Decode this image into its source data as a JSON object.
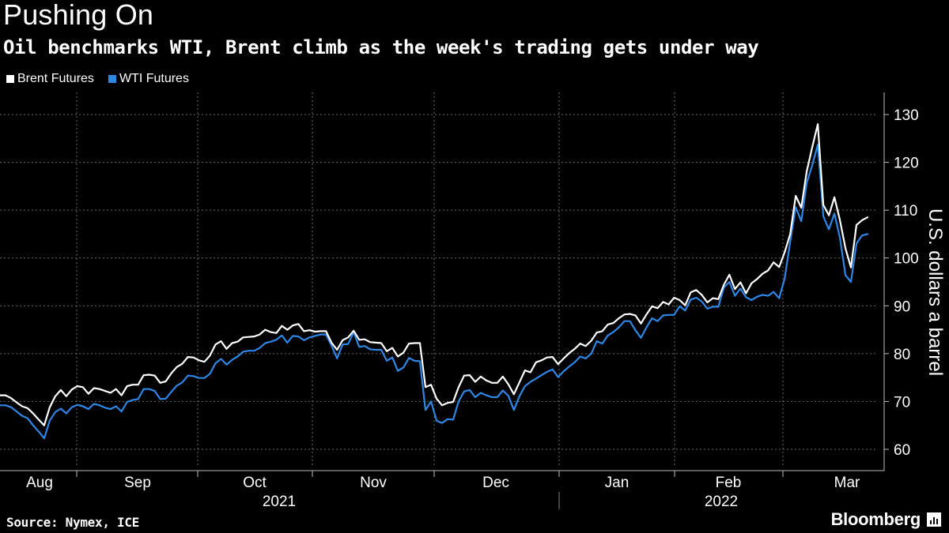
{
  "header": {
    "title": "Pushing On",
    "subtitle": "Oil benchmarks WTI, Brent climb as the week's trading gets under way"
  },
  "footer": {
    "source": "Source: Nymex, ICE",
    "brand": "Bloomberg"
  },
  "colors": {
    "background": "#000000",
    "brent": "#ffffff",
    "wti": "#2e86e6",
    "grid": "#6a6a6a"
  },
  "chart_data": {
    "type": "line",
    "title": "Pushing On",
    "subtitle": "Oil benchmarks WTI, Brent climb as the week's trading gets under way",
    "ylabel": "U.S. dollars a barrel",
    "ylim": [
      55,
      133
    ],
    "yticks": [
      60,
      70,
      80,
      90,
      100,
      110,
      120,
      130
    ],
    "month_ticks": [
      "Aug",
      "Sep",
      "Oct",
      "Nov",
      "Dec",
      "Jan",
      "Feb",
      "Mar"
    ],
    "year_labels": [
      "2021",
      "2022"
    ],
    "x_start": "2021-07-30",
    "legend_position": "top-left",
    "grid": true,
    "series": [
      {
        "name": "Brent Futures",
        "color": "#ffffff",
        "values": [
          71.3,
          71.3,
          70.7,
          69.8,
          69.0,
          68.6,
          67.5,
          66.2,
          65.0,
          68.8,
          71.1,
          72.4,
          71.1,
          72.5,
          73.2,
          73.0,
          71.6,
          72.8,
          72.6,
          72.2,
          71.8,
          72.6,
          71.3,
          73.2,
          73.5,
          73.5,
          75.5,
          75.6,
          75.4,
          73.9,
          74.2,
          75.9,
          77.2,
          77.9,
          79.3,
          79.2,
          78.6,
          78.3,
          79.6,
          81.9,
          82.6,
          81.0,
          82.2,
          82.5,
          83.4,
          83.5,
          83.6,
          84.0,
          85.0,
          84.5,
          84.3,
          85.8,
          85.0,
          85.9,
          86.2,
          84.7,
          84.9,
          84.6,
          84.7,
          84.7,
          82.3,
          80.8,
          82.8,
          83.4,
          84.8,
          82.9,
          83.0,
          82.4,
          82.3,
          82.2,
          80.5,
          81.2,
          79.4,
          80.2,
          82.1,
          82.2,
          82.2,
          73.0,
          73.5,
          70.6,
          69.2,
          69.7,
          69.9,
          73.0,
          75.4,
          75.5,
          74.1,
          75.2,
          74.4,
          73.9,
          73.9,
          75.2,
          73.6,
          71.5,
          74.0,
          76.5,
          76.1,
          78.2,
          78.6,
          79.2,
          79.3,
          77.8,
          79.0,
          80.1,
          81.0,
          82.1,
          81.6,
          82.7,
          84.4,
          84.7,
          86.1,
          86.4,
          87.4,
          88.2,
          88.3,
          88.0,
          86.3,
          88.2,
          89.9,
          89.5,
          90.8,
          90.3,
          91.7,
          91.2,
          90.1,
          92.8,
          93.3,
          92.3,
          90.7,
          91.6,
          91.4,
          94.4,
          96.5,
          93.5,
          94.9,
          92.6,
          94.7,
          95.6,
          96.7,
          97.4,
          99.1,
          98.1,
          101.2,
          105.0,
          113.0,
          110.5,
          118.1,
          123.2,
          127.98,
          111.1,
          108.9,
          112.7,
          107.9,
          102.0,
          98.0,
          106.9,
          107.9,
          108.5
        ]
      },
      {
        "name": "WTI Futures",
        "color": "#2e86e6",
        "values": [
          69.2,
          69.2,
          68.8,
          67.9,
          67.0,
          66.5,
          65.0,
          63.7,
          62.3,
          66.0,
          67.8,
          68.5,
          67.5,
          68.8,
          69.3,
          69.0,
          68.4,
          69.5,
          69.2,
          68.7,
          68.4,
          69.0,
          67.9,
          69.9,
          70.3,
          70.5,
          72.6,
          72.6,
          72.2,
          70.5,
          70.6,
          72.0,
          73.3,
          74.0,
          75.4,
          75.3,
          74.9,
          74.9,
          75.8,
          78.0,
          78.9,
          77.7,
          78.7,
          79.4,
          80.4,
          80.6,
          80.6,
          81.2,
          82.2,
          82.5,
          82.9,
          83.8,
          82.3,
          83.7,
          83.6,
          82.8,
          83.4,
          83.7,
          84.0,
          84.0,
          81.7,
          79.0,
          81.9,
          82.0,
          84.5,
          81.4,
          81.6,
          80.9,
          80.8,
          80.8,
          78.5,
          79.2,
          76.4,
          77.1,
          79.1,
          78.5,
          78.4,
          68.2,
          70.0,
          66.0,
          65.5,
          66.3,
          66.2,
          70.0,
          72.1,
          72.4,
          70.9,
          71.8,
          71.3,
          70.9,
          70.9,
          72.3,
          71.2,
          68.2,
          71.1,
          73.2,
          74.1,
          74.8,
          75.5,
          76.2,
          76.7,
          75.1,
          76.3,
          77.3,
          78.2,
          79.4,
          79.0,
          80.0,
          82.6,
          82.1,
          83.8,
          84.5,
          85.5,
          86.8,
          86.8,
          84.9,
          83.3,
          85.5,
          87.4,
          86.8,
          88.0,
          88.1,
          88.1,
          89.9,
          89.0,
          91.3,
          91.7,
          90.9,
          89.4,
          89.8,
          89.8,
          93.8,
          95.0,
          92.1,
          93.6,
          91.8,
          91.2,
          91.9,
          92.3,
          92.1,
          92.9,
          91.6,
          95.7,
          103.4,
          110.6,
          107.7,
          115.7,
          119.4,
          123.7,
          108.7,
          106.0,
          109.3,
          104.2,
          96.4,
          95.0,
          103.0,
          104.7,
          105.0
        ]
      }
    ]
  }
}
